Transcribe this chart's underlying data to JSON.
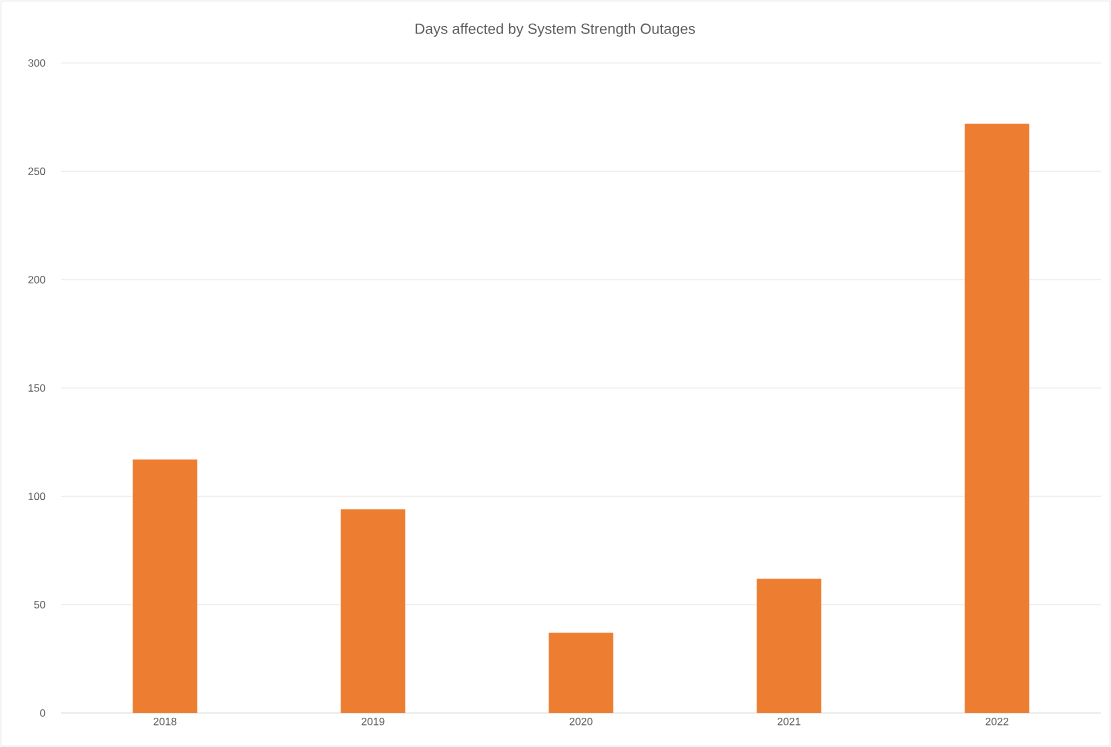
{
  "chart_data": {
    "type": "bar",
    "title": "Days affected by System Strength Outages",
    "categories": [
      "2018",
      "2019",
      "2020",
      "2021",
      "2022"
    ],
    "values": [
      117,
      94,
      37,
      62,
      272
    ],
    "color": "#ed7d31",
    "ylim": [
      0,
      300
    ],
    "yticks": [
      0,
      50,
      100,
      150,
      200,
      250,
      300
    ],
    "grid": "y"
  }
}
